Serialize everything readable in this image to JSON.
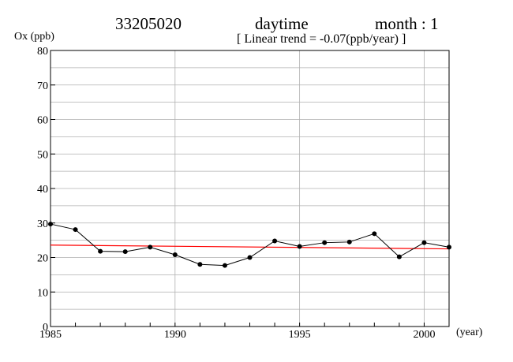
{
  "header": {
    "station": "33205020",
    "period": "daytime",
    "month_label": "month : 1",
    "trend_label": "[ Linear trend = -0.07(ppb/year) ]"
  },
  "chart_data": {
    "type": "line",
    "title": "33205020 daytime month : 1",
    "subtitle": "[ Linear trend = -0.07(ppb/year) ]",
    "ylabel": "Ox (ppb)",
    "xlabel": "(year)",
    "xlim": [
      1985,
      2001
    ],
    "ylim": [
      0,
      80
    ],
    "x_ticks": [
      1985,
      1990,
      1995,
      2000
    ],
    "y_ticks": [
      0,
      10,
      20,
      30,
      40,
      50,
      60,
      70,
      80
    ],
    "grid": true,
    "series": [
      {
        "color": "#000000",
        "x": [
          1985,
          1986,
          1987,
          1988,
          1989,
          1990,
          1991,
          1992,
          1993,
          1994,
          1995,
          1996,
          1997,
          1998,
          1999,
          2000,
          2001
        ],
        "values": [
          29.7,
          28.1,
          21.8,
          21.7,
          23.0,
          20.8,
          18.0,
          17.7,
          20.0,
          24.8,
          23.2,
          24.3,
          24.5,
          26.9,
          20.2,
          24.3,
          23.0
        ]
      }
    ],
    "trend_line": {
      "color": "#ff0000",
      "x": [
        1985,
        2001
      ],
      "values": [
        23.6,
        22.5
      ]
    }
  }
}
